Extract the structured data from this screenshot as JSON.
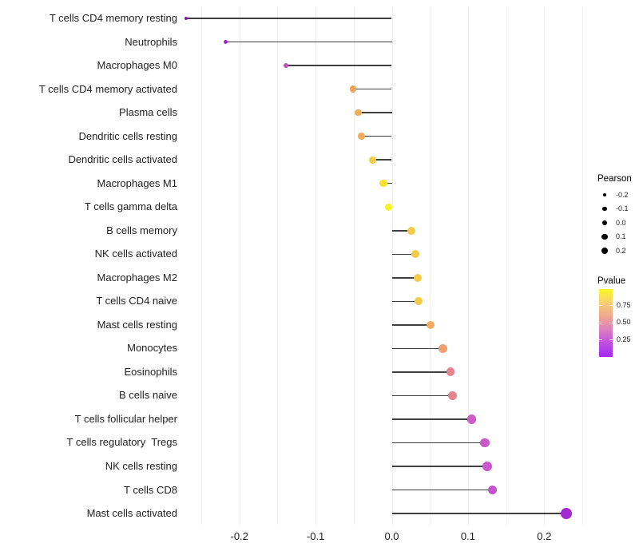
{
  "chart_data": {
    "type": "scatter",
    "subtype": "lollipop",
    "title": "",
    "xlabel": "",
    "ylabel": "",
    "xlim": [
      -0.275,
      0.26
    ],
    "x_ticks": [
      "-0.2",
      "-0.1",
      "0.0",
      "0.1",
      "0.2"
    ],
    "grid": "vertical gridlines every 0.05, no panel border, white background",
    "rows": [
      {
        "label": "T cells CD4 memory resting",
        "pearson": -0.27,
        "pvalue_approx": 0.03,
        "color": "#8A15B5"
      },
      {
        "label": "Neutrophils",
        "pearson": -0.218,
        "pvalue_approx": 0.06,
        "color": "#9B2BC4"
      },
      {
        "label": "Macrophages M0",
        "pearson": -0.139,
        "pvalue_approx": 0.2,
        "color": "#C24FC6"
      },
      {
        "label": "T cells CD4 memory activated",
        "pearson": -0.051,
        "pvalue_approx": 0.62,
        "color": "#F1A35E"
      },
      {
        "label": "Plasma cells",
        "pearson": -0.044,
        "pvalue_approx": 0.64,
        "color": "#F1AC5B"
      },
      {
        "label": "Dendritic cells resting",
        "pearson": -0.04,
        "pvalue_approx": 0.64,
        "color": "#F1AC5B"
      },
      {
        "label": "Dendritic cells activated",
        "pearson": -0.025,
        "pvalue_approx": 0.78,
        "color": "#F3CC48"
      },
      {
        "label": "Macrophages M1",
        "pearson": -0.011,
        "pvalue_approx": 0.87,
        "color": "#F8E22E"
      },
      {
        "label": "T cells gamma delta",
        "pearson": -0.004,
        "pvalue_approx": 0.95,
        "color": "#FBF021"
      },
      {
        "label": "B cells memory",
        "pearson": 0.026,
        "pvalue_approx": 0.77,
        "color": "#F4CC4B"
      },
      {
        "label": "NK cells activated",
        "pearson": 0.031,
        "pvalue_approx": 0.77,
        "color": "#F4CC4B"
      },
      {
        "label": "Macrophages M2",
        "pearson": 0.034,
        "pvalue_approx": 0.77,
        "color": "#F4CC4B"
      },
      {
        "label": "T cells CD4 naive",
        "pearson": 0.035,
        "pvalue_approx": 0.77,
        "color": "#F4CC4B"
      },
      {
        "label": "Mast cells resting",
        "pearson": 0.051,
        "pvalue_approx": 0.63,
        "color": "#F2AD62"
      },
      {
        "label": "Monocytes",
        "pearson": 0.067,
        "pvalue_approx": 0.55,
        "color": "#EF9F74"
      },
      {
        "label": "Eosinophils",
        "pearson": 0.077,
        "pvalue_approx": 0.45,
        "color": "#E5838E"
      },
      {
        "label": "B cells naive",
        "pearson": 0.08,
        "pvalue_approx": 0.45,
        "color": "#E5838E"
      },
      {
        "label": "T cells follicular helper",
        "pearson": 0.105,
        "pvalue_approx": 0.27,
        "color": "#CC5CC7"
      },
      {
        "label": "T cells regulatory  Tregs",
        "pearson": 0.122,
        "pvalue_approx": 0.25,
        "color": "#C958CA"
      },
      {
        "label": "NK cells resting",
        "pearson": 0.125,
        "pvalue_approx": 0.25,
        "color": "#C958CA"
      },
      {
        "label": "T cells CD8",
        "pearson": 0.132,
        "pvalue_approx": 0.23,
        "color": "#C554CC"
      },
      {
        "label": "Mast cells activated",
        "pearson": 0.229,
        "pvalue_approx": 0.04,
        "color": "#A32BD3"
      }
    ]
  },
  "legend": {
    "pearson": {
      "title": "Pearson",
      "items": [
        "-0.2",
        "-0.1",
        "0.0",
        "0.1",
        "0.2"
      ],
      "dot_color": "#000000"
    },
    "pvalue": {
      "title": "Pvalue",
      "ticks": [
        "0.75",
        "0.50",
        "0.25"
      ],
      "gradient": [
        "#FBF821",
        "#F8CF73",
        "#EFA68F",
        "#DD7FC0",
        "#BE4EE0",
        "#A32BEF"
      ]
    }
  },
  "colors": {
    "background": "#FFFFFF",
    "gridline_major": "#EDEDED",
    "gridline_minor": "#F4F4F4",
    "stem": "#3F3F3F",
    "axis_text": "#1F1F1F"
  }
}
